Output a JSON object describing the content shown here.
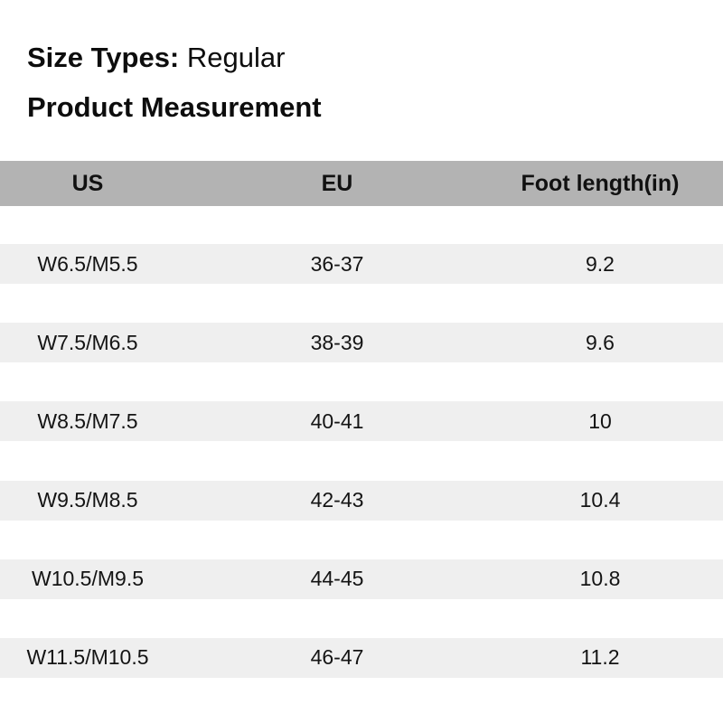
{
  "header": {
    "size_types_label": "Size Types:",
    "size_types_value": "Regular",
    "title": "Product Measurement"
  },
  "table": {
    "columns": [
      "US",
      "EU",
      "Foot length(in)"
    ],
    "rows": [
      [
        "W6.5/M5.5",
        "36-37",
        "9.2"
      ],
      [
        "W7.5/M6.5",
        "38-39",
        "9.6"
      ],
      [
        "W8.5/M7.5",
        "40-41",
        "10"
      ],
      [
        "W9.5/M8.5",
        "42-43",
        "10.4"
      ],
      [
        "W10.5/M9.5",
        "44-45",
        "10.8"
      ],
      [
        "W11.5/M10.5",
        "46-47",
        "11.2"
      ]
    ]
  },
  "colors": {
    "header_row_bg": "#b3b3b3",
    "data_row_bg": "#efefef",
    "text": "#141414"
  },
  "chart_data": {
    "type": "table",
    "title": "Product Measurement",
    "subtitle": "Size Types: Regular",
    "columns": [
      "US",
      "EU",
      "Foot length(in)"
    ],
    "rows": [
      [
        "W6.5/M5.5",
        "36-37",
        "9.2"
      ],
      [
        "W7.5/M6.5",
        "38-39",
        "9.6"
      ],
      [
        "W8.5/M7.5",
        "40-41",
        "10"
      ],
      [
        "W9.5/M8.5",
        "42-43",
        "10.4"
      ],
      [
        "W10.5/M9.5",
        "44-45",
        "10.8"
      ],
      [
        "W11.5/M10.5",
        "46-47",
        "11.2"
      ]
    ],
    "layout_hints": {
      "header_background": "#b3b3b3",
      "row_background": "#efefef",
      "row_separator": "white gap",
      "alignment": "center"
    }
  }
}
